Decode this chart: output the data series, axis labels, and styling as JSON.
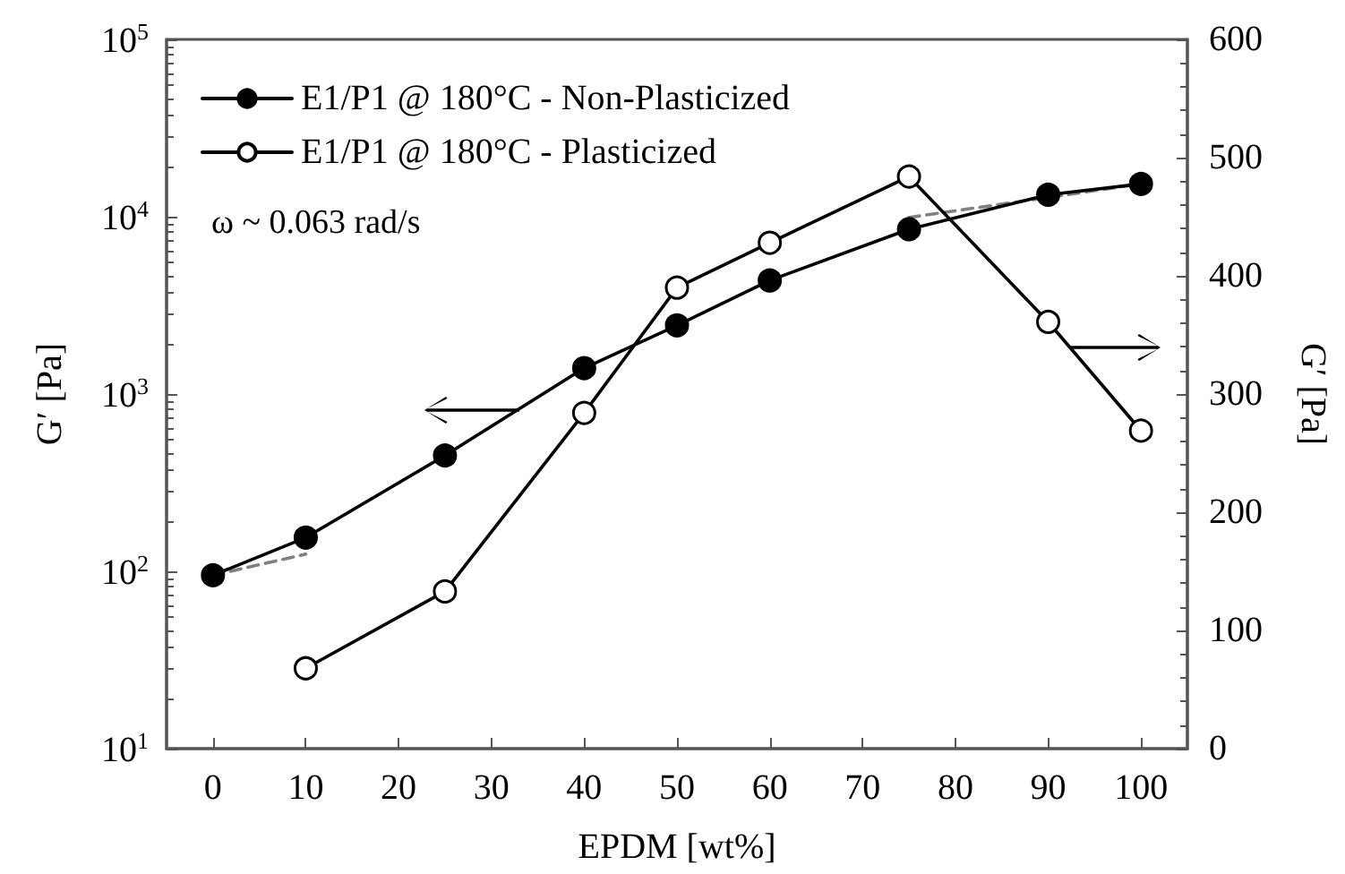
{
  "chart_data": {
    "type": "line",
    "xlabel": "EPDM [wt%]",
    "ylabel": "G′ [Pa]",
    "y2label": "G′ [Pa]",
    "annotations": [
      "ω ~ 0.063 rad/s"
    ],
    "x": [
      0,
      10,
      25,
      40,
      50,
      60,
      75,
      90,
      100
    ],
    "series": [
      {
        "name": "E1/P1 @ 180°C - Non-Plasticized",
        "color": "#000000",
        "marker": "circle",
        "values": [
          95,
          155,
          450,
          1400,
          2440,
          4370,
          8500,
          13300,
          15300
        ]
      },
      {
        "name": "E1/P1 @ 180°C - Plasticized",
        "color": "#000000",
        "marker": "circle-open",
        "axis": "y2",
        "values": [
          null,
          68,
          133,
          284,
          390,
          428,
          484,
          361,
          269
        ]
      },
      {
        "type": "line",
        "color": "#808080",
        "marker": "none",
        "line_style": "dashed",
        "x": [
          0,
          10
        ],
        "values": [
          95,
          125
        ]
      },
      {
        "type": "line",
        "color": "#808080",
        "marker": "none",
        "line_style": "dashed",
        "x": [
          75,
          100
        ],
        "values": [
          9900,
          15300
        ]
      }
    ],
    "xlim": [
      -5,
      105
    ],
    "xticks": [
      0,
      10,
      20,
      30,
      40,
      50,
      60,
      70,
      80,
      90,
      100
    ],
    "log": "y",
    "ylim": [
      10,
      100000
    ],
    "yticks": [
      {
        "value": 10,
        "label": "10$^{1}$"
      },
      {
        "value": 100,
        "label": "10$^{2}$"
      },
      {
        "value": 1000,
        "label": "10$^{3}$"
      },
      {
        "value": 10000,
        "label": "10$^{4}$"
      },
      {
        "value": 100000,
        "label": "10$^{5}$"
      }
    ],
    "y2lim": [
      0,
      600
    ],
    "y2ticks": [
      0,
      100,
      200,
      300,
      400,
      500,
      600
    ],
    "grid": false,
    "legend": "top left",
    "line_style": "solid"
  }
}
